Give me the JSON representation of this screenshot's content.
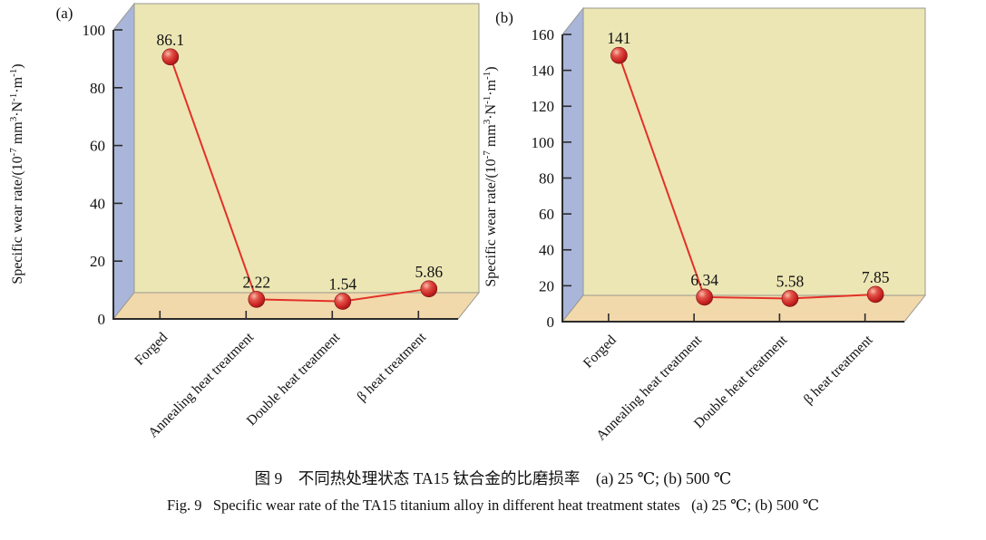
{
  "figure": {
    "caption_zh": "图 9　不同热处理状态 TA15 钛合金的比磨损率　(a) 25 ℃; (b) 500 ℃",
    "caption_en": "Fig. 9   Specific wear rate of the TA15 titanium alloy in different heat treatment states   (a) 25 ℃; (b) 500 ℃"
  },
  "colors": {
    "back_wall": "#ece6b4",
    "left_wall": "#a9b6da",
    "floor": "#f2d9ab",
    "wall_edge": "#98988f",
    "axis": "#2b2b2b",
    "text": "#111111",
    "line": "#e23128",
    "marker_highlight": "#f7bcae",
    "marker_light": "#e2544a",
    "marker_mid": "#c92322",
    "marker_dark": "#7d1013"
  },
  "chart_data": [
    {
      "type": "line",
      "panel_label": "(a)",
      "condition": "25 ℃",
      "ylabel": "Specific wear rate/(10⁻⁷ mm³·N⁻¹·m⁻¹)",
      "ylabel_markup": "Specific wear rate/(10^-7^ mm^3^·N^-1^·m^-1^)",
      "categories": [
        "Forged",
        "Annealing heat treatment",
        "Double heat treatment",
        "β heat treatment"
      ],
      "values": [
        86.1,
        2.22,
        1.54,
        5.86
      ],
      "point_labels": [
        "86.1",
        "2.22",
        "1.54",
        "5.86"
      ],
      "ylim": [
        0,
        100
      ],
      "yticks": [
        0,
        20,
        40,
        60,
        80,
        100
      ],
      "grid": false,
      "legend": "none",
      "marker": "red-sphere",
      "style": "3d-wall-line"
    },
    {
      "type": "line",
      "panel_label": "(b)",
      "condition": "500 ℃",
      "ylabel": "Specific wear rate/(10⁻⁷ mm³·N⁻¹·m⁻¹)",
      "ylabel_markup": "Specific wear rate/(10^-7^ mm^3^·N^-1^·m^-1^)",
      "categories": [
        "Forged",
        "Annealing heat treatment",
        "Double heat treatment",
        "β heat treatment"
      ],
      "values": [
        141,
        6.34,
        5.58,
        7.85
      ],
      "point_labels": [
        "141",
        "6.34",
        "5.58",
        "7.85"
      ],
      "ylim": [
        0,
        160
      ],
      "yticks": [
        0,
        20,
        40,
        60,
        80,
        100,
        120,
        140,
        160
      ],
      "grid": false,
      "legend": "none",
      "marker": "red-sphere",
      "style": "3d-wall-line"
    }
  ]
}
